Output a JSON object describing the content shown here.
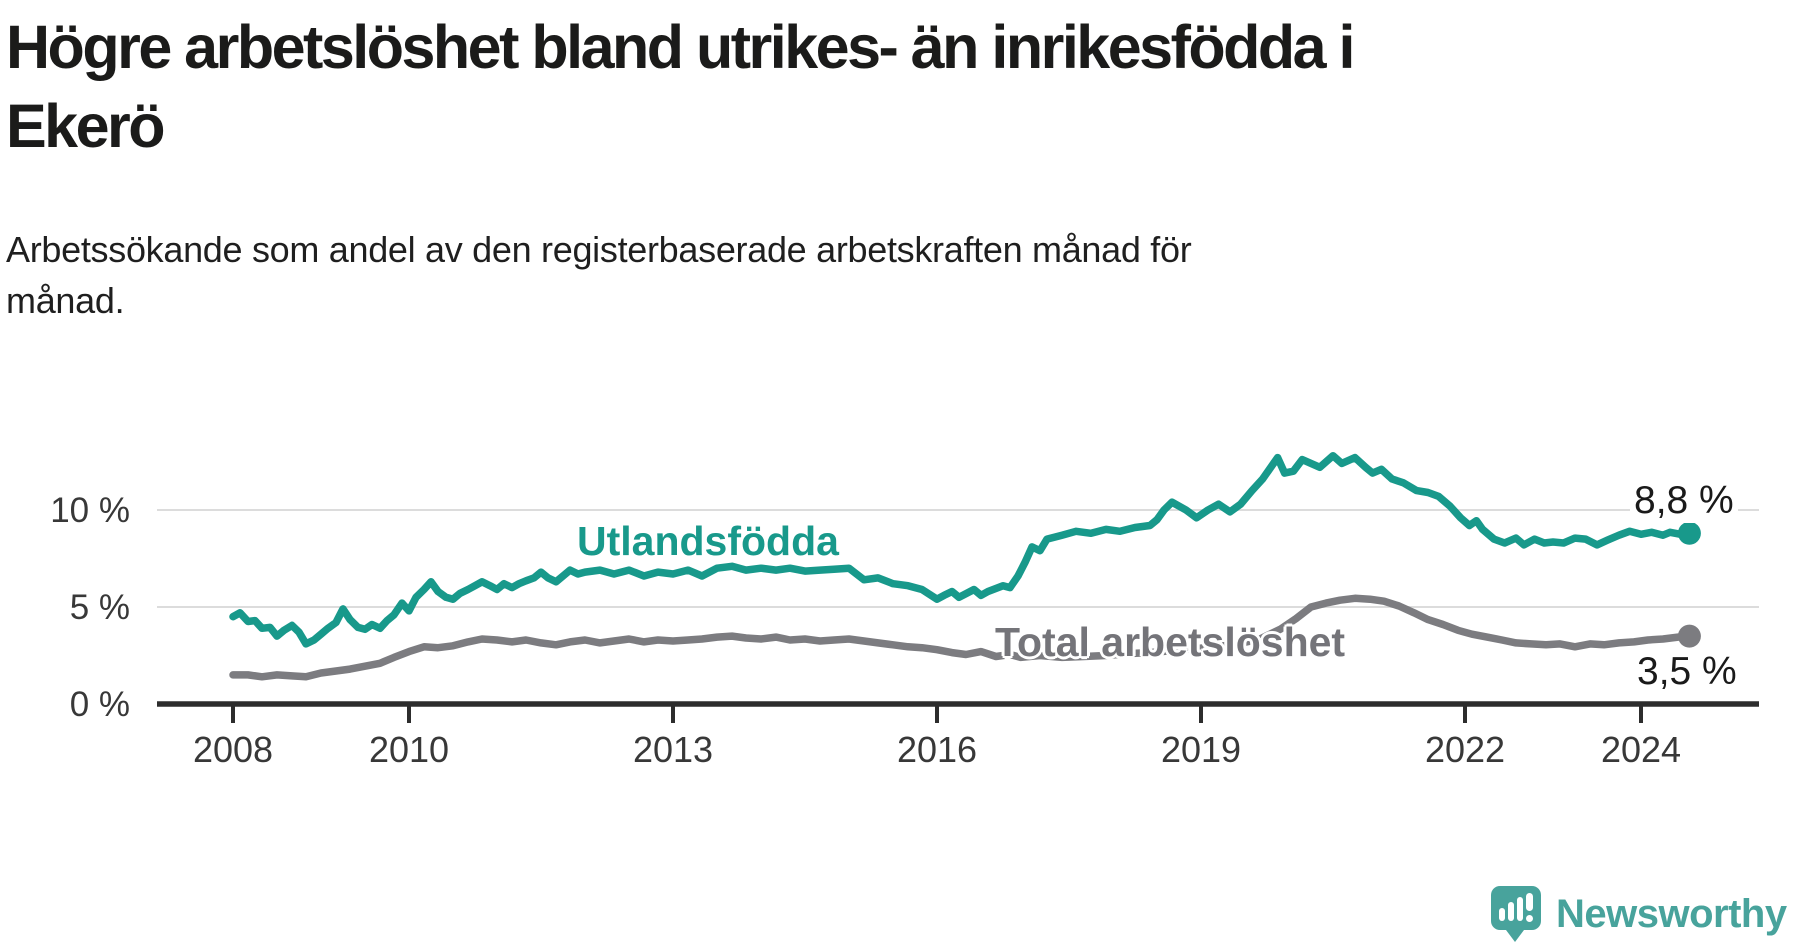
{
  "header": {
    "title_line1": "Högre arbetslöshet bland utrikes- än inrikesfödda i",
    "title_line2": "Ekerö",
    "subtitle_line1": "Arbetssökande som andel av den registerbaserade arbetskraften månad för",
    "subtitle_line2": "månad."
  },
  "chart_data": {
    "type": "line",
    "title": "Högre arbetslöshet bland utrikes- än inrikesfödda i Ekerö",
    "subtitle": "Arbetssökande som andel av den registerbaserade arbetskraften månad för månad.",
    "xlabel": "",
    "ylabel": "",
    "x_unit": "decimal_year",
    "xlim": [
      2008,
      2024.9
    ],
    "ylim": [
      0,
      13.5
    ],
    "grid": "horizontal",
    "x_ticks": [
      2008,
      2010,
      2013,
      2016,
      2019,
      2022,
      2024
    ],
    "y_ticks": [
      {
        "value": 0,
        "label": "0 %"
      },
      {
        "value": 5,
        "label": "5 %"
      },
      {
        "value": 10,
        "label": "10 %"
      }
    ],
    "colors": {
      "grid": "#dcdcdc",
      "axis": "#2d2d2d",
      "tick_text": "#383838"
    },
    "series": [
      {
        "name": "Utlandsfödda",
        "color": "#18998b",
        "end_value": 8.8,
        "end_label": "8,8 %",
        "points": [
          [
            2008.0,
            4.5
          ],
          [
            2008.08,
            4.7
          ],
          [
            2008.17,
            4.25
          ],
          [
            2008.25,
            4.3
          ],
          [
            2008.33,
            3.9
          ],
          [
            2008.42,
            3.95
          ],
          [
            2008.5,
            3.5
          ],
          [
            2008.58,
            3.8
          ],
          [
            2008.67,
            4.05
          ],
          [
            2008.75,
            3.7
          ],
          [
            2008.83,
            3.1
          ],
          [
            2008.92,
            3.3
          ],
          [
            2009.0,
            3.6
          ],
          [
            2009.08,
            3.9
          ],
          [
            2009.17,
            4.2
          ],
          [
            2009.25,
            4.9
          ],
          [
            2009.33,
            4.35
          ],
          [
            2009.42,
            3.95
          ],
          [
            2009.5,
            3.85
          ],
          [
            2009.58,
            4.1
          ],
          [
            2009.67,
            3.9
          ],
          [
            2009.75,
            4.3
          ],
          [
            2009.83,
            4.6
          ],
          [
            2009.92,
            5.2
          ],
          [
            2010.0,
            4.8
          ],
          [
            2010.08,
            5.5
          ],
          [
            2010.17,
            5.9
          ],
          [
            2010.25,
            6.3
          ],
          [
            2010.33,
            5.8
          ],
          [
            2010.42,
            5.5
          ],
          [
            2010.5,
            5.4
          ],
          [
            2010.58,
            5.7
          ],
          [
            2010.67,
            5.9
          ],
          [
            2010.75,
            6.1
          ],
          [
            2010.83,
            6.3
          ],
          [
            2010.92,
            6.1
          ],
          [
            2011.0,
            5.9
          ],
          [
            2011.08,
            6.2
          ],
          [
            2011.17,
            6.0
          ],
          [
            2011.25,
            6.2
          ],
          [
            2011.33,
            6.35
          ],
          [
            2011.42,
            6.5
          ],
          [
            2011.5,
            6.8
          ],
          [
            2011.58,
            6.5
          ],
          [
            2011.67,
            6.3
          ],
          [
            2011.75,
            6.6
          ],
          [
            2011.83,
            6.9
          ],
          [
            2011.92,
            6.7
          ],
          [
            2012.0,
            6.8
          ],
          [
            2012.17,
            6.9
          ],
          [
            2012.33,
            6.7
          ],
          [
            2012.5,
            6.9
          ],
          [
            2012.67,
            6.6
          ],
          [
            2012.83,
            6.8
          ],
          [
            2013.0,
            6.7
          ],
          [
            2013.17,
            6.9
          ],
          [
            2013.33,
            6.6
          ],
          [
            2013.5,
            7.0
          ],
          [
            2013.67,
            7.1
          ],
          [
            2013.83,
            6.9
          ],
          [
            2014.0,
            7.0
          ],
          [
            2014.17,
            6.9
          ],
          [
            2014.33,
            7.0
          ],
          [
            2014.5,
            6.85
          ],
          [
            2014.67,
            6.9
          ],
          [
            2014.83,
            6.95
          ],
          [
            2015.0,
            7.0
          ],
          [
            2015.17,
            6.4
          ],
          [
            2015.33,
            6.5
          ],
          [
            2015.5,
            6.2
          ],
          [
            2015.67,
            6.1
          ],
          [
            2015.83,
            5.9
          ],
          [
            2016.0,
            5.4
          ],
          [
            2016.08,
            5.6
          ],
          [
            2016.17,
            5.8
          ],
          [
            2016.25,
            5.5
          ],
          [
            2016.42,
            5.9
          ],
          [
            2016.5,
            5.6
          ],
          [
            2016.58,
            5.8
          ],
          [
            2016.75,
            6.1
          ],
          [
            2016.83,
            6.0
          ],
          [
            2016.92,
            6.6
          ],
          [
            2017.0,
            7.3
          ],
          [
            2017.08,
            8.1
          ],
          [
            2017.17,
            7.9
          ],
          [
            2017.25,
            8.5
          ],
          [
            2017.42,
            8.7
          ],
          [
            2017.58,
            8.9
          ],
          [
            2017.75,
            8.8
          ],
          [
            2017.92,
            9.0
          ],
          [
            2018.08,
            8.9
          ],
          [
            2018.25,
            9.1
          ],
          [
            2018.42,
            9.2
          ],
          [
            2018.5,
            9.5
          ],
          [
            2018.58,
            10.0
          ],
          [
            2018.67,
            10.4
          ],
          [
            2018.83,
            10.0
          ],
          [
            2018.95,
            9.6
          ],
          [
            2019.08,
            10.0
          ],
          [
            2019.2,
            10.3
          ],
          [
            2019.33,
            9.9
          ],
          [
            2019.45,
            10.3
          ],
          [
            2019.58,
            11.0
          ],
          [
            2019.7,
            11.6
          ],
          [
            2019.87,
            12.7
          ],
          [
            2019.95,
            11.9
          ],
          [
            2020.05,
            12.0
          ],
          [
            2020.15,
            12.6
          ],
          [
            2020.25,
            12.4
          ],
          [
            2020.35,
            12.2
          ],
          [
            2020.5,
            12.8
          ],
          [
            2020.6,
            12.4
          ],
          [
            2020.75,
            12.7
          ],
          [
            2020.87,
            12.2
          ],
          [
            2020.95,
            11.9
          ],
          [
            2021.05,
            12.1
          ],
          [
            2021.17,
            11.6
          ],
          [
            2021.3,
            11.4
          ],
          [
            2021.45,
            11.0
          ],
          [
            2021.58,
            10.9
          ],
          [
            2021.7,
            10.7
          ],
          [
            2021.83,
            10.2
          ],
          [
            2021.95,
            9.6
          ],
          [
            2022.05,
            9.2
          ],
          [
            2022.13,
            9.45
          ],
          [
            2022.2,
            9.0
          ],
          [
            2022.33,
            8.5
          ],
          [
            2022.45,
            8.3
          ],
          [
            2022.58,
            8.55
          ],
          [
            2022.67,
            8.2
          ],
          [
            2022.79,
            8.5
          ],
          [
            2022.9,
            8.3
          ],
          [
            2023.0,
            8.35
          ],
          [
            2023.12,
            8.3
          ],
          [
            2023.25,
            8.55
          ],
          [
            2023.37,
            8.5
          ],
          [
            2023.5,
            8.2
          ],
          [
            2023.62,
            8.45
          ],
          [
            2023.75,
            8.7
          ],
          [
            2023.87,
            8.9
          ],
          [
            2024.0,
            8.75
          ],
          [
            2024.12,
            8.85
          ],
          [
            2024.25,
            8.7
          ],
          [
            2024.33,
            8.85
          ],
          [
            2024.45,
            8.75
          ],
          [
            2024.55,
            8.8
          ]
        ]
      },
      {
        "name": "Total arbetslöshet",
        "color": "#7c7c80",
        "end_value": 3.5,
        "end_label": "3,5 %",
        "points": [
          [
            2008.0,
            1.5
          ],
          [
            2008.17,
            1.5
          ],
          [
            2008.33,
            1.4
          ],
          [
            2008.5,
            1.5
          ],
          [
            2008.67,
            1.45
          ],
          [
            2008.83,
            1.4
          ],
          [
            2009.0,
            1.6
          ],
          [
            2009.17,
            1.7
          ],
          [
            2009.33,
            1.8
          ],
          [
            2009.5,
            1.95
          ],
          [
            2009.67,
            2.1
          ],
          [
            2009.83,
            2.4
          ],
          [
            2010.0,
            2.7
          ],
          [
            2010.17,
            2.95
          ],
          [
            2010.33,
            2.9
          ],
          [
            2010.5,
            3.0
          ],
          [
            2010.67,
            3.2
          ],
          [
            2010.83,
            3.35
          ],
          [
            2011.0,
            3.3
          ],
          [
            2011.17,
            3.2
          ],
          [
            2011.33,
            3.3
          ],
          [
            2011.5,
            3.15
          ],
          [
            2011.67,
            3.05
          ],
          [
            2011.83,
            3.2
          ],
          [
            2012.0,
            3.3
          ],
          [
            2012.17,
            3.15
          ],
          [
            2012.33,
            3.25
          ],
          [
            2012.5,
            3.35
          ],
          [
            2012.67,
            3.2
          ],
          [
            2012.83,
            3.3
          ],
          [
            2013.0,
            3.25
          ],
          [
            2013.17,
            3.3
          ],
          [
            2013.33,
            3.35
          ],
          [
            2013.5,
            3.45
          ],
          [
            2013.67,
            3.5
          ],
          [
            2013.83,
            3.4
          ],
          [
            2014.0,
            3.35
          ],
          [
            2014.17,
            3.45
          ],
          [
            2014.33,
            3.3
          ],
          [
            2014.5,
            3.35
          ],
          [
            2014.67,
            3.25
          ],
          [
            2014.83,
            3.3
          ],
          [
            2015.0,
            3.35
          ],
          [
            2015.17,
            3.25
          ],
          [
            2015.33,
            3.15
          ],
          [
            2015.5,
            3.05
          ],
          [
            2015.67,
            2.95
          ],
          [
            2015.83,
            2.9
          ],
          [
            2016.0,
            2.8
          ],
          [
            2016.17,
            2.65
          ],
          [
            2016.33,
            2.55
          ],
          [
            2016.5,
            2.7
          ],
          [
            2016.67,
            2.45
          ],
          [
            2016.83,
            2.55
          ],
          [
            2016.95,
            2.4
          ],
          [
            2017.17,
            2.5
          ],
          [
            2017.42,
            2.4
          ],
          [
            2017.67,
            2.45
          ],
          [
            2017.92,
            2.5
          ],
          [
            2018.17,
            2.6
          ],
          [
            2018.42,
            2.65
          ],
          [
            2018.67,
            2.75
          ],
          [
            2018.92,
            2.85
          ],
          [
            2019.17,
            2.95
          ],
          [
            2019.42,
            3.1
          ],
          [
            2019.67,
            3.35
          ],
          [
            2019.9,
            3.85
          ],
          [
            2020.08,
            4.4
          ],
          [
            2020.25,
            5.0
          ],
          [
            2020.42,
            5.2
          ],
          [
            2020.58,
            5.35
          ],
          [
            2020.75,
            5.45
          ],
          [
            2020.92,
            5.4
          ],
          [
            2021.08,
            5.3
          ],
          [
            2021.25,
            5.05
          ],
          [
            2021.42,
            4.7
          ],
          [
            2021.58,
            4.35
          ],
          [
            2021.75,
            4.1
          ],
          [
            2021.92,
            3.8
          ],
          [
            2022.08,
            3.6
          ],
          [
            2022.25,
            3.45
          ],
          [
            2022.42,
            3.3
          ],
          [
            2022.58,
            3.15
          ],
          [
            2022.75,
            3.1
          ],
          [
            2022.92,
            3.05
          ],
          [
            2023.08,
            3.1
          ],
          [
            2023.25,
            2.95
          ],
          [
            2023.42,
            3.1
          ],
          [
            2023.58,
            3.05
          ],
          [
            2023.75,
            3.15
          ],
          [
            2023.92,
            3.2
          ],
          [
            2024.08,
            3.3
          ],
          [
            2024.25,
            3.35
          ],
          [
            2024.42,
            3.45
          ],
          [
            2024.55,
            3.5
          ]
        ]
      }
    ]
  },
  "branding": {
    "logo_text": "Newsworthy",
    "logo_color": "#48a39c"
  }
}
